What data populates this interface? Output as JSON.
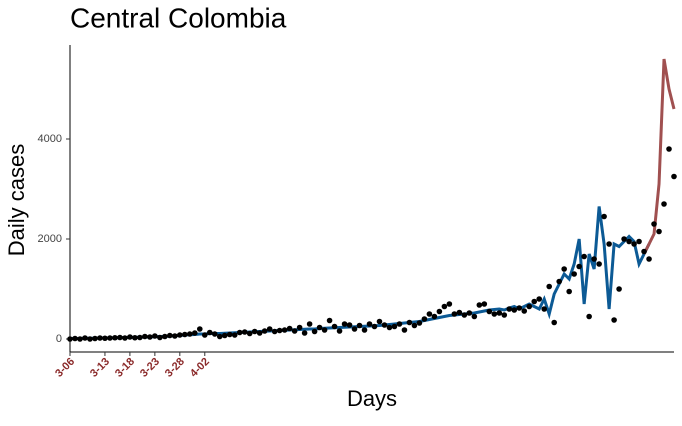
{
  "chart_data": {
    "type": "line",
    "title": "Central Colombia",
    "x_label": "Days",
    "y_label": "Daily cases",
    "x": [
      0,
      1,
      2,
      3,
      4,
      5,
      6,
      7,
      8,
      9,
      10,
      11,
      12,
      13,
      14,
      15,
      16,
      17,
      18,
      19,
      20,
      21,
      22,
      23,
      24,
      25,
      26,
      27,
      28,
      29,
      30,
      31,
      32,
      33,
      34,
      35,
      36,
      37,
      38,
      39,
      40,
      41,
      42,
      43,
      44,
      45,
      46,
      47,
      48,
      49,
      50,
      51,
      52,
      53,
      54,
      55,
      56,
      57,
      58,
      59,
      60,
      61,
      62,
      63,
      64,
      65,
      66,
      67,
      68,
      69,
      70,
      71,
      72,
      73,
      74,
      75,
      76,
      77,
      78,
      79,
      80,
      81,
      82,
      83,
      84,
      85,
      86,
      87,
      88,
      89,
      90,
      91,
      92,
      93,
      94,
      95,
      96,
      97,
      98,
      99,
      100,
      101,
      102,
      103,
      104,
      105,
      106,
      107,
      108,
      109,
      110,
      111,
      112,
      113,
      114,
      115,
      116,
      117,
      118,
      119,
      120,
      121
    ],
    "series": [
      {
        "type": "scatter",
        "color": "#000000",
        "values": [
          0,
          10,
          0,
          20,
          0,
          10,
          20,
          15,
          20,
          25,
          30,
          20,
          40,
          25,
          30,
          50,
          40,
          60,
          30,
          50,
          70,
          60,
          80,
          90,
          100,
          120,
          200,
          80,
          130,
          100,
          50,
          70,
          90,
          80,
          130,
          140,
          110,
          150,
          120,
          160,
          200,
          150,
          170,
          180,
          210,
          160,
          230,
          120,
          300,
          150,
          230,
          180,
          370,
          250,
          160,
          300,
          280,
          200,
          270,
          180,
          300,
          250,
          350,
          280,
          230,
          250,
          300,
          180,
          330,
          270,
          320,
          400,
          500,
          450,
          550,
          650,
          700,
          500,
          530,
          480,
          520,
          450,
          680,
          700,
          550,
          500,
          520,
          480,
          600,
          580,
          620,
          560,
          650,
          750,
          800,
          600,
          1050,
          330,
          1150,
          1400,
          950,
          1300,
          1450,
          1650,
          450,
          1600,
          1500,
          2450,
          1900,
          380,
          1000,
          2000,
          1950,
          1900,
          1950,
          1750,
          1600,
          2300,
          2150,
          2700,
          3800,
          3250
        ]
      },
      {
        "type": "line",
        "color": "#0c5a95",
        "values": [
          10,
          10,
          10,
          15,
          15,
          15,
          20,
          20,
          20,
          25,
          25,
          30,
          30,
          35,
          35,
          40,
          40,
          45,
          50,
          50,
          60,
          65,
          70,
          80,
          85,
          90,
          100,
          100,
          110,
          110,
          110,
          115,
          120,
          125,
          130,
          135,
          140,
          145,
          150,
          155,
          160,
          165,
          170,
          175,
          180,
          185,
          190,
          195,
          200,
          200,
          210,
          215,
          220,
          225,
          230,
          235,
          240,
          245,
          250,
          255,
          260,
          265,
          270,
          280,
          290,
          300,
          310,
          320,
          330,
          340,
          350,
          370,
          390,
          410,
          430,
          450,
          470,
          480,
          490,
          500,
          510,
          520,
          540,
          560,
          580,
          590,
          600,
          580,
          620,
          650,
          600,
          650,
          700,
          650,
          600,
          800,
          500,
          900,
          1100,
          1300,
          1200,
          1500,
          2000,
          700,
          1700,
          1400,
          2650,
          1900,
          600,
          1900,
          1850,
          1950,
          2050,
          1950,
          1500,
          1700,
          1900,
          null,
          null,
          null,
          null,
          null
        ]
      },
      {
        "type": "line",
        "color": "#a05050",
        "x": [
          115,
          116,
          117,
          118,
          119,
          120,
          121
        ],
        "values": [
          1700,
          1900,
          2100,
          3100,
          5600,
          5000,
          4600
        ]
      }
    ],
    "xlim": [
      0,
      121
    ],
    "xticks": [
      {
        "value": 0,
        "label": "3-06"
      },
      {
        "value": 7,
        "label": "3-13"
      },
      {
        "value": 12,
        "label": "3-18"
      },
      {
        "value": 17,
        "label": "3-23"
      },
      {
        "value": 22,
        "label": "3-28"
      },
      {
        "value": 27,
        "label": "4-02"
      }
    ],
    "ylim": [
      -260,
      5880
    ],
    "yticks": [
      0,
      2000,
      4000
    ]
  }
}
